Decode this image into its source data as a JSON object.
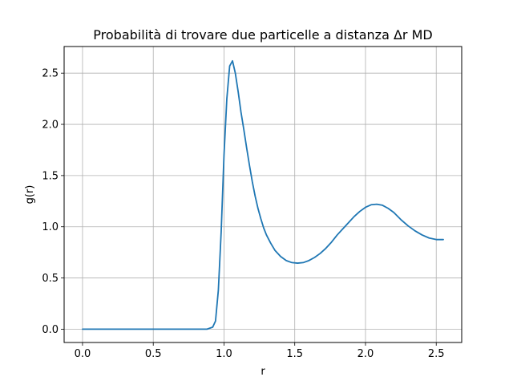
{
  "chart_data": {
    "type": "line",
    "title": "Probabilità di trovare due particelle a distanza Δr MD",
    "xlabel": "r",
    "ylabel": "g(r)",
    "xlim": [
      -0.13,
      2.68
    ],
    "ylim": [
      -0.13,
      2.76
    ],
    "xticks": [
      0.0,
      0.5,
      1.0,
      1.5,
      2.0,
      2.5
    ],
    "xtick_labels": [
      "0.0",
      "0.5",
      "1.0",
      "1.5",
      "2.0",
      "2.5"
    ],
    "yticks": [
      0.0,
      0.5,
      1.0,
      1.5,
      2.0,
      2.5
    ],
    "ytick_labels": [
      "0.0",
      "0.5",
      "1.0",
      "1.5",
      "2.0",
      "2.5"
    ],
    "grid": true,
    "line_color": "#1f77b4",
    "series": [
      {
        "x": [
          0.0,
          0.1,
          0.2,
          0.3,
          0.4,
          0.5,
          0.6,
          0.7,
          0.8,
          0.88,
          0.9,
          0.92,
          0.94,
          0.96,
          0.98,
          1.0,
          1.02,
          1.04,
          1.06,
          1.08,
          1.1,
          1.12,
          1.14,
          1.16,
          1.18,
          1.2,
          1.22,
          1.24,
          1.26,
          1.28,
          1.3,
          1.33,
          1.36,
          1.4,
          1.44,
          1.48,
          1.52,
          1.56,
          1.6,
          1.64,
          1.68,
          1.72,
          1.76,
          1.8,
          1.84,
          1.88,
          1.92,
          1.96,
          2.0,
          2.04,
          2.08,
          2.12,
          2.16,
          2.2,
          2.25,
          2.3,
          2.35,
          2.4,
          2.45,
          2.5,
          2.55
        ],
        "y": [
          0.0,
          0.0,
          0.0,
          0.0,
          0.0,
          0.0,
          0.0,
          0.0,
          0.0,
          0.0,
          0.01,
          0.02,
          0.08,
          0.38,
          0.95,
          1.7,
          2.25,
          2.57,
          2.62,
          2.5,
          2.32,
          2.12,
          1.95,
          1.77,
          1.6,
          1.44,
          1.3,
          1.18,
          1.08,
          0.99,
          0.92,
          0.84,
          0.77,
          0.71,
          0.67,
          0.65,
          0.645,
          0.65,
          0.67,
          0.7,
          0.74,
          0.79,
          0.85,
          0.92,
          0.98,
          1.04,
          1.1,
          1.15,
          1.19,
          1.215,
          1.22,
          1.21,
          1.18,
          1.14,
          1.07,
          1.01,
          0.96,
          0.92,
          0.89,
          0.875,
          0.875
        ]
      }
    ]
  }
}
